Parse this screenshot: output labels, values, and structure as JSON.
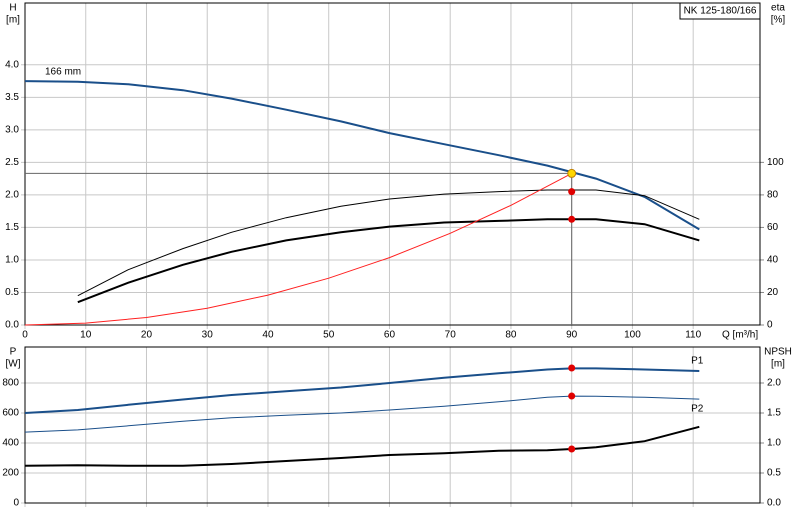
{
  "chart_data": [
    {
      "type": "line",
      "title": "NK 125-180/166",
      "xlabel": "Q [m³/h]",
      "ylabel": [
        "H",
        "[m]"
      ],
      "y2label": [
        "eta",
        "[%]"
      ],
      "xlim": [
        0,
        121
      ],
      "xticks": [
        0,
        10,
        20,
        30,
        40,
        50,
        60,
        70,
        80,
        90,
        100,
        110
      ],
      "ylim": [
        0,
        4.95
      ],
      "yticks": [
        {
          "value": 0,
          "label": "0.0"
        },
        0.5,
        {
          "value": 1,
          "label": "1.0"
        },
        1.5,
        {
          "value": 2,
          "label": "2.0"
        },
        2.5,
        {
          "value": 3,
          "label": "3.0"
        },
        3.5,
        {
          "value": 4,
          "label": "4.0"
        }
      ],
      "y2lim": [
        0,
        198
      ],
      "y2ticks": [
        0,
        20,
        40,
        60,
        80,
        100
      ],
      "grid": true,
      "series": [
        {
          "name": "166 mm",
          "color": "#1a4f8a",
          "width": 2,
          "x": [
            0,
            8.7,
            17,
            26,
            34,
            43,
            52,
            60,
            69,
            78,
            86,
            90,
            94,
            102,
            111
          ],
          "values": [
            3.75,
            3.74,
            3.7,
            3.61,
            3.48,
            3.31,
            3.13,
            2.95,
            2.78,
            2.61,
            2.45,
            2.35,
            2.25,
            1.97,
            1.47
          ]
        },
        {
          "color": "#000000",
          "width": 1,
          "axis": "y2",
          "x": [
            8.7,
            17,
            26,
            34,
            43,
            52,
            60,
            69,
            78,
            86,
            94,
            102,
            111
          ],
          "values": [
            18,
            34,
            47,
            57,
            66,
            73,
            77.5,
            80.5,
            82,
            83,
            83,
            79.5,
            65
          ]
        },
        {
          "color": "#000000",
          "width": 2,
          "axis": "y2",
          "x": [
            8.7,
            17,
            26,
            34,
            43,
            52,
            60,
            69,
            78,
            86,
            94,
            102,
            111
          ],
          "values": [
            14,
            26,
            37,
            45,
            52,
            57,
            60.5,
            63,
            64,
            65,
            65,
            62,
            52
          ]
        },
        {
          "color": "#ff2020",
          "width": 1,
          "x": [
            0,
            10,
            20,
            30,
            40,
            50,
            60,
            70,
            80,
            90
          ],
          "values": [
            0,
            0.029,
            0.115,
            0.259,
            0.46,
            0.719,
            1.036,
            1.41,
            1.84,
            2.33
          ]
        }
      ],
      "duty_point": {
        "x": 90,
        "y": 2.33,
        "color": "#ffd700"
      },
      "markers": [
        {
          "x": 90,
          "y": 82,
          "axis": "y2",
          "color": "#e00000"
        },
        {
          "x": 90,
          "y": 65,
          "axis": "y2",
          "color": "#e00000"
        }
      ]
    },
    {
      "type": "line",
      "ylabel": [
        "P",
        "[W]"
      ],
      "y2label": [
        "NPSH",
        "[m]"
      ],
      "xlim": [
        0,
        121
      ],
      "xticks": [
        0,
        10,
        20,
        30,
        40,
        50,
        60,
        70,
        80,
        90,
        100,
        110
      ],
      "xtick_labels": false,
      "ylim": [
        0,
        1040
      ],
      "yticks": [
        0,
        200,
        400,
        600,
        800
      ],
      "y2lim": [
        0,
        2.6
      ],
      "y2ticks": [
        {
          "value": 0,
          "label": "0.0"
        },
        0.5,
        {
          "value": 1,
          "label": "1.0"
        },
        1.5,
        {
          "value": 2,
          "label": "2.0"
        }
      ],
      "grid": true,
      "series": [
        {
          "name": "P1",
          "color": "#1a4f8a",
          "width": 2,
          "x": [
            0,
            8.7,
            17,
            26,
            34,
            43,
            52,
            60,
            69,
            78,
            86,
            90,
            94,
            102,
            111
          ],
          "values": [
            600,
            620,
            655,
            690,
            720,
            745,
            770,
            800,
            835,
            865,
            890,
            897,
            897,
            890,
            880
          ]
        },
        {
          "name": "P2",
          "color": "#1a4f8a",
          "width": 1,
          "x": [
            0,
            8.7,
            17,
            26,
            34,
            43,
            52,
            60,
            69,
            78,
            86,
            90,
            94,
            102,
            111
          ],
          "values": [
            473,
            487,
            515,
            545,
            568,
            585,
            600,
            620,
            645,
            675,
            705,
            713,
            712,
            705,
            693
          ]
        },
        {
          "color": "#000000",
          "width": 2,
          "axis": "y2",
          "x": [
            0,
            8.7,
            17,
            26,
            34,
            43,
            52,
            60,
            69,
            78,
            86,
            90,
            94,
            102,
            111
          ],
          "values": [
            0.62,
            0.63,
            0.62,
            0.62,
            0.65,
            0.7,
            0.75,
            0.8,
            0.83,
            0.87,
            0.88,
            0.9,
            0.93,
            1.03,
            1.27
          ]
        }
      ],
      "markers": [
        {
          "x": 90,
          "y": 900,
          "color": "#e00000"
        },
        {
          "x": 90,
          "y": 713,
          "color": "#e00000"
        },
        {
          "x": 90,
          "y": 0.9,
          "axis": "y2",
          "color": "#e00000"
        }
      ]
    }
  ]
}
